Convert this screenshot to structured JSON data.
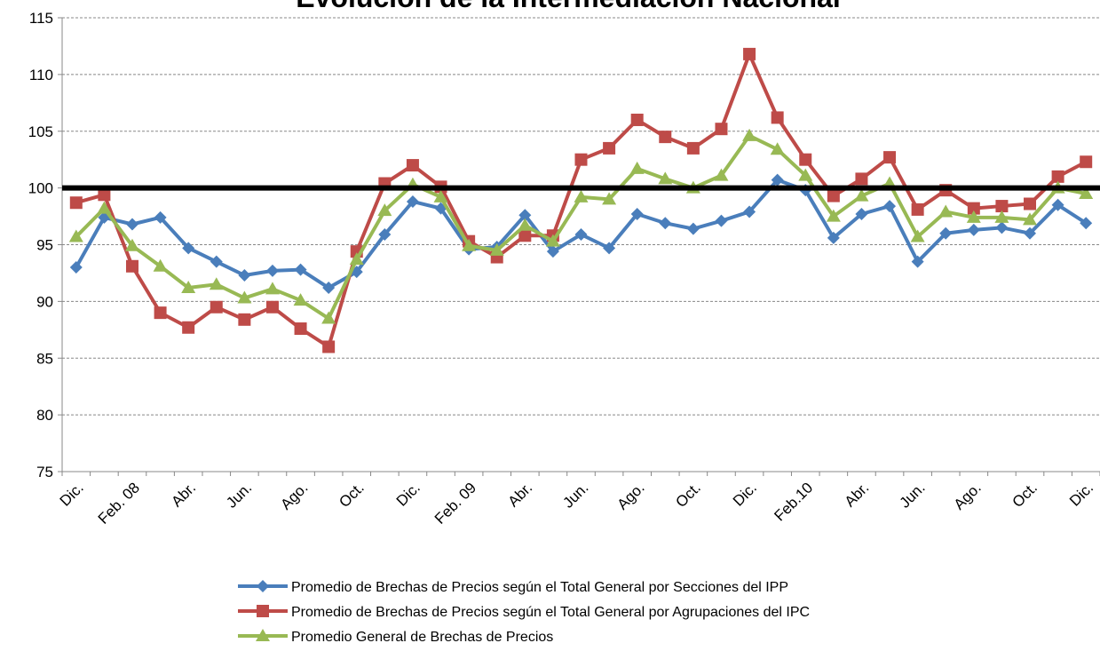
{
  "chart_data": {
    "type": "line",
    "title": "Evolución de la Intermediación Nacional",
    "categories": [
      "Dic.",
      null,
      "Feb. 08",
      null,
      "Abr.",
      null,
      "Jun.",
      null,
      "Ago.",
      null,
      "Oct.",
      null,
      "Dic.",
      null,
      "Feb. 09",
      null,
      "Abr.",
      null,
      "Jun.",
      null,
      "Ago.",
      null,
      "Oct.",
      null,
      "Dic.",
      null,
      "Feb.10",
      null,
      "Abr.",
      null,
      "Jun.",
      null,
      "Ago.",
      null,
      "Oct.",
      null,
      "Dic."
    ],
    "series": [
      {
        "name": "Promedio de Brechas de Precios según el Total General por Secciones del IPP",
        "color": "#4a7ebb",
        "marker": "diamond",
        "values": [
          93.0,
          97.4,
          96.8,
          97.4,
          94.7,
          93.5,
          92.3,
          92.7,
          92.8,
          91.2,
          92.6,
          95.9,
          98.8,
          98.2,
          94.6,
          94.8,
          97.6,
          94.4,
          95.9,
          94.7,
          97.7,
          96.9,
          96.4,
          97.1,
          97.9,
          100.7,
          99.8,
          95.6,
          97.7,
          98.4,
          93.5,
          96.0,
          96.3,
          96.5,
          96.0,
          98.5,
          96.9
        ]
      },
      {
        "name": "Promedio de Brechas de Precios según el Total General por Agrupaciones del IPC",
        "color": "#be4b48",
        "marker": "square",
        "values": [
          98.7,
          99.4,
          93.1,
          89.0,
          87.7,
          89.5,
          88.4,
          89.5,
          87.6,
          86.0,
          94.4,
          100.4,
          102.0,
          100.1,
          95.3,
          93.9,
          95.8,
          95.8,
          102.5,
          103.5,
          106.0,
          104.5,
          103.5,
          105.2,
          111.8,
          106.2,
          102.5,
          99.3,
          100.8,
          102.7,
          98.1,
          99.8,
          98.2,
          98.4,
          98.6,
          101.0,
          102.3
        ]
      },
      {
        "name": "Promedio General de Brechas de Precios",
        "color": "#98b954",
        "marker": "triangle",
        "values": [
          95.7,
          98.2,
          94.9,
          93.1,
          91.2,
          91.5,
          90.3,
          91.1,
          90.1,
          88.5,
          93.7,
          98.0,
          100.3,
          99.2,
          94.9,
          94.5,
          96.7,
          95.3,
          99.2,
          99.0,
          101.7,
          100.8,
          100.0,
          101.1,
          104.6,
          103.4,
          101.1,
          97.5,
          99.3,
          100.4,
          95.7,
          97.9,
          97.4,
          97.4,
          97.2,
          100.0,
          99.5
        ]
      }
    ],
    "ylim": [
      75,
      115
    ],
    "yticks": [
      75,
      80,
      85,
      90,
      95,
      100,
      105,
      110,
      115
    ],
    "grid": true,
    "reference_line": 100,
    "legend": "bottom"
  }
}
